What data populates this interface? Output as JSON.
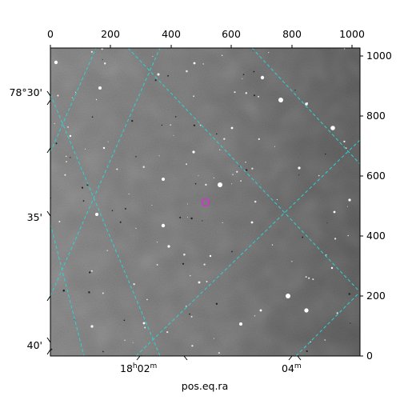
{
  "figure": {
    "xlabel": "pos.eq.ra",
    "top_ticks": [
      "0",
      "200",
      "400",
      "600",
      "800",
      "1000"
    ],
    "right_ticks": [
      "0",
      "200",
      "400",
      "600",
      "800",
      "1000"
    ],
    "left_ticks": [
      "78°30'",
      "35'",
      "40'"
    ],
    "bottom_ticks": [
      {
        "main": "18",
        "sup1": "h",
        "mid": "02",
        "sup2": "m"
      },
      {
        "main": "04",
        "sup1": "",
        "mid": "",
        "sup2": "m"
      }
    ]
  },
  "colors": {
    "grid": "#2ad4d4",
    "marker": "#c040c0",
    "frame": "#000000"
  }
}
